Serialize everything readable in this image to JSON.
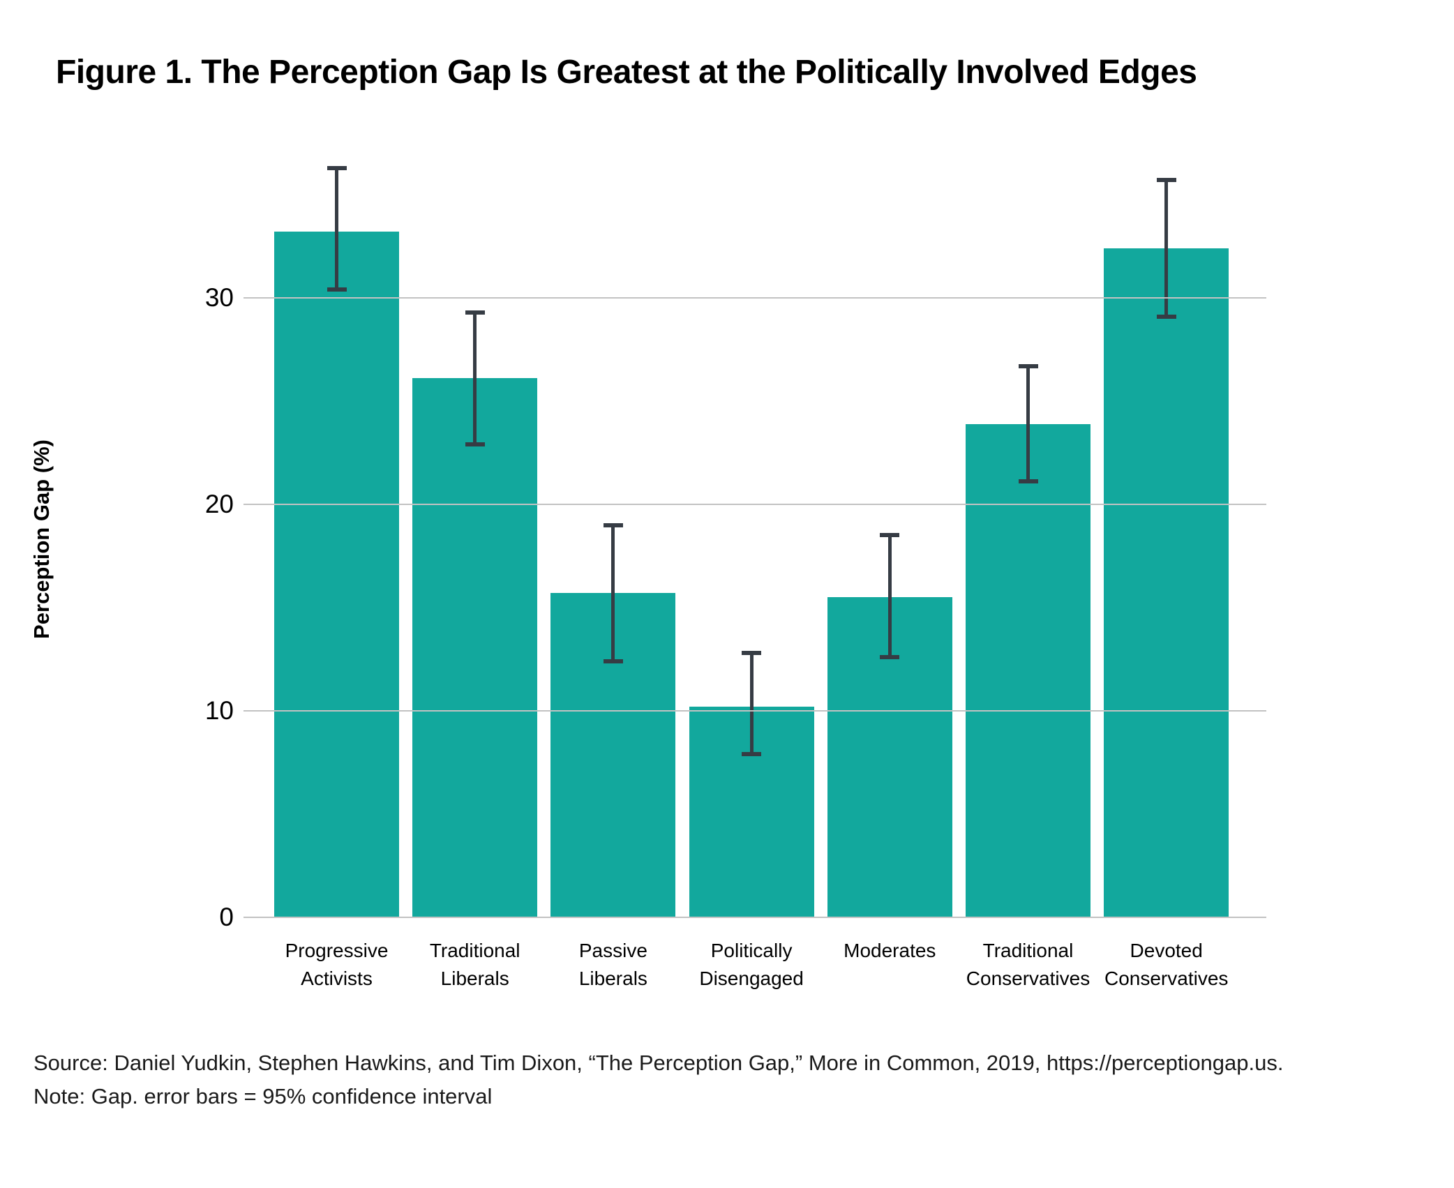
{
  "figure": {
    "title": "Figure 1. The Perception Gap Is Greatest at the Politically Involved Edges"
  },
  "chart_data": {
    "type": "bar",
    "title": "Figure 1. The Perception Gap Is Greatest at the Politically Involved Edges",
    "xlabel": "",
    "ylabel": "Perception Gap (%)",
    "ylim": [
      0,
      37
    ],
    "yticks": [
      0,
      10,
      20,
      30
    ],
    "grid": true,
    "legend_position": "none",
    "bar_color": "#12A89D",
    "error_bar_color": "#363C44",
    "gridline_color": "#C2C2C2",
    "categories": [
      "Progressive Activists",
      "Traditional Liberals",
      "Passive Liberals",
      "Politically Disengaged",
      "Moderates",
      "Traditional Conservatives",
      "Devoted Conservatives"
    ],
    "category_label_lines": [
      [
        "Progressive",
        "Activists"
      ],
      [
        "Traditional",
        "Liberals"
      ],
      [
        "Passive",
        "Liberals"
      ],
      [
        "Politically",
        "Disengaged"
      ],
      [
        "Moderates"
      ],
      [
        "Traditional",
        "Conservatives"
      ],
      [
        "Devoted",
        "Conservatives"
      ]
    ],
    "values": [
      33.2,
      26.1,
      15.7,
      10.2,
      15.5,
      23.9,
      32.4
    ],
    "ci_lower": [
      30.4,
      22.9,
      12.4,
      7.9,
      12.6,
      21.1,
      29.1
    ],
    "ci_upper": [
      36.3,
      29.3,
      19.0,
      12.8,
      18.5,
      26.7,
      35.7
    ],
    "error_bars_meaning": "95% confidence interval"
  },
  "footer": {
    "source": "Source: Daniel Yudkin, Stephen Hawkins, and Tim Dixon, “The Perception Gap,” More in Common, 2019, https://perceptiongap.us.",
    "note": "Note: Gap. error bars = 95% confidence interval"
  }
}
